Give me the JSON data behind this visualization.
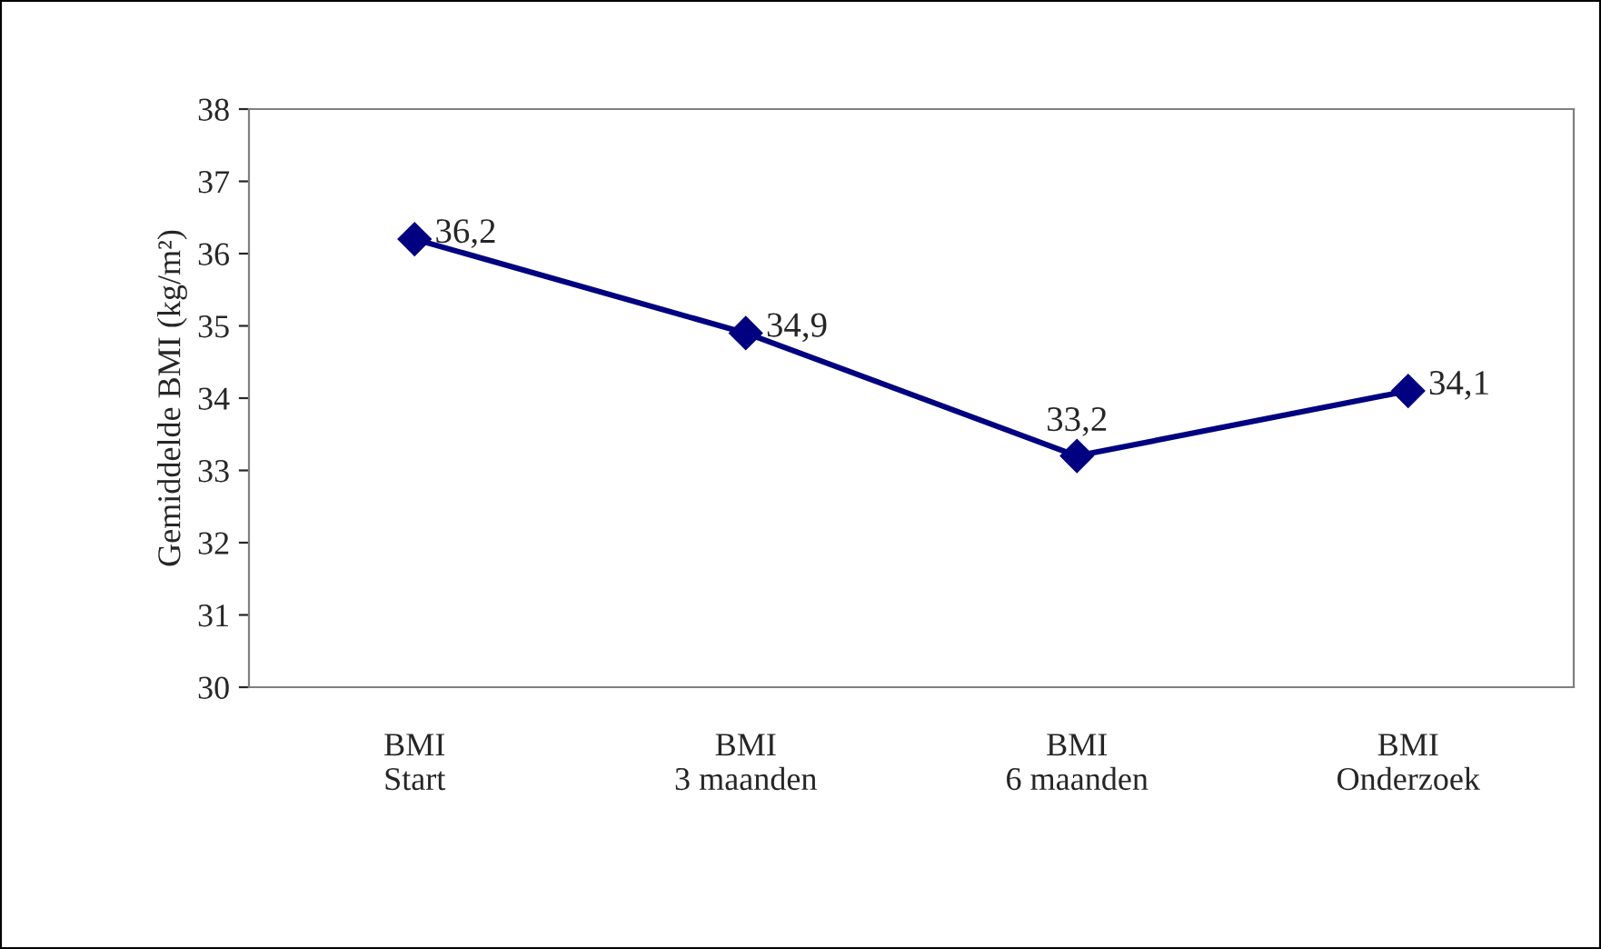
{
  "chart_data": {
    "type": "line",
    "ylabel": "Gemiddelde BMI (kg/m²)",
    "categories": [
      "BMI\nStart",
      "BMI\n3 maanden",
      "BMI\n6 maanden",
      "BMI\nOnderzoek"
    ],
    "series": [
      {
        "color": "#000080",
        "values": [
          36.2,
          34.9,
          33.2,
          34.1
        ],
        "value_labels": [
          "36,2",
          "34,9",
          "33,2",
          "34,1"
        ]
      }
    ],
    "ylim": [
      30,
      38
    ],
    "yticks": [
      30,
      31,
      32,
      33,
      34,
      35,
      36,
      37,
      38
    ],
    "marker": "diamond",
    "line_style": "solid",
    "grid": false,
    "legend": false
  }
}
